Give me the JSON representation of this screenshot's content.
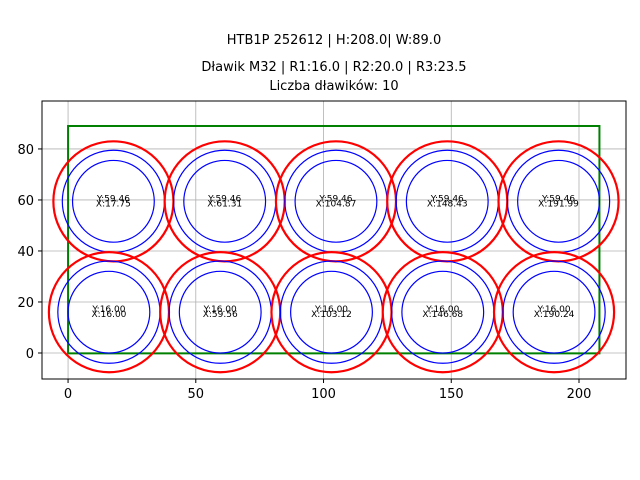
{
  "chart_data": {
    "type": "scatter",
    "title": "HTB1P 252612 | H:208.0| W:89.0",
    "subtitle_line1": "Dławik M32 | R1:16.0 | R2:20.0 | R3:23.5",
    "subtitle_line2": "Liczba dławików: 10",
    "xlabel": "",
    "ylabel": "",
    "xlim": [
      -10.2,
      218.4
    ],
    "ylim": [
      -10.2,
      98.8
    ],
    "xticks": [
      0,
      50,
      100,
      150,
      200
    ],
    "yticks": [
      0,
      20,
      40,
      60,
      80
    ],
    "grid": true,
    "rectangle": {
      "x": 0,
      "y": 0,
      "width": 208.0,
      "height": 89.0,
      "color": "#008000"
    },
    "radii": {
      "R1": 16.0,
      "R2": 20.0,
      "R3": 23.5
    },
    "radius_colors": {
      "R1": "#0000ff",
      "R2": "#0000ff",
      "R3": "#ff0000"
    },
    "glands": [
      {
        "x": 17.75,
        "y": 59.46,
        "label_x": "X:17.75",
        "label_y": "Y:59.46"
      },
      {
        "x": 61.31,
        "y": 59.46,
        "label_x": "X:61.31",
        "label_y": "Y:59.46"
      },
      {
        "x": 104.87,
        "y": 59.46,
        "label_x": "X:104.87",
        "label_y": "Y:59.46"
      },
      {
        "x": 148.43,
        "y": 59.46,
        "label_x": "X:148.43",
        "label_y": "Y:59.46"
      },
      {
        "x": 191.99,
        "y": 59.46,
        "label_x": "X:191.99",
        "label_y": "Y:59.46"
      },
      {
        "x": 16.0,
        "y": 16.0,
        "label_x": "X:16.00",
        "label_y": "Y:16.00"
      },
      {
        "x": 59.56,
        "y": 16.0,
        "label_x": "X:59.56",
        "label_y": "Y:16.00"
      },
      {
        "x": 103.12,
        "y": 16.0,
        "label_x": "X:103.12",
        "label_y": "Y:16.00"
      },
      {
        "x": 146.68,
        "y": 16.0,
        "label_x": "X:146.68",
        "label_y": "Y:16.00"
      },
      {
        "x": 190.24,
        "y": 16.0,
        "label_x": "X:190.24",
        "label_y": "Y:16.00"
      }
    ]
  }
}
